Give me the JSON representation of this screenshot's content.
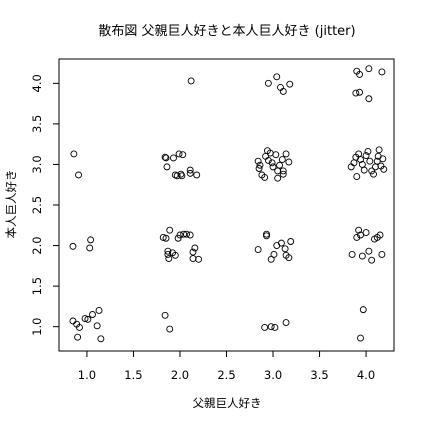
{
  "chart_data": {
    "type": "scatter",
    "title": "散布図 父親巨人好きと本人巨人好き (jitter)",
    "xlabel": "父親巨人好き",
    "ylabel": "本人巨人好き",
    "xlim": [
      0.7,
      4.3
    ],
    "ylim": [
      0.7,
      4.3
    ],
    "x_ticks": [
      1.0,
      1.5,
      2.0,
      2.5,
      3.0,
      3.5,
      4.0
    ],
    "x_tick_labels": [
      "1.0",
      "1.5",
      "2.0",
      "2.5",
      "3.0",
      "3.5",
      "4.0"
    ],
    "y_ticks": [
      1.0,
      1.5,
      2.0,
      2.5,
      3.0,
      3.5,
      4.0
    ],
    "y_tick_labels": [
      "1.0",
      "1.5",
      "2.0",
      "2.5",
      "3.0",
      "3.5",
      "4.0"
    ],
    "grid": false,
    "marker": "open-circle",
    "marker_color": "#000000",
    "points": [
      {
        "x": 0.85,
        "y": 1.07
      },
      {
        "x": 0.89,
        "y": 1.03
      },
      {
        "x": 0.92,
        "y": 0.99
      },
      {
        "x": 0.9,
        "y": 0.87
      },
      {
        "x": 0.98,
        "y": 1.1
      },
      {
        "x": 1.01,
        "y": 1.09
      },
      {
        "x": 1.06,
        "y": 1.15
      },
      {
        "x": 1.13,
        "y": 1.2
      },
      {
        "x": 1.11,
        "y": 1.01
      },
      {
        "x": 1.15,
        "y": 0.85
      },
      {
        "x": 0.86,
        "y": 3.13
      },
      {
        "x": 0.91,
        "y": 2.87
      },
      {
        "x": 0.85,
        "y": 1.99
      },
      {
        "x": 1.04,
        "y": 2.07
      },
      {
        "x": 1.03,
        "y": 1.97
      },
      {
        "x": 2.12,
        "y": 4.03
      },
      {
        "x": 1.84,
        "y": 3.09
      },
      {
        "x": 1.85,
        "y": 3.08
      },
      {
        "x": 1.86,
        "y": 2.97
      },
      {
        "x": 1.93,
        "y": 3.08
      },
      {
        "x": 1.99,
        "y": 3.13
      },
      {
        "x": 2.03,
        "y": 3.12
      },
      {
        "x": 1.95,
        "y": 2.87
      },
      {
        "x": 1.97,
        "y": 2.86
      },
      {
        "x": 2.01,
        "y": 2.88
      },
      {
        "x": 2.02,
        "y": 2.86
      },
      {
        "x": 2.11,
        "y": 2.93
      },
      {
        "x": 2.11,
        "y": 2.89
      },
      {
        "x": 2.18,
        "y": 2.87
      },
      {
        "x": 1.82,
        "y": 2.1
      },
      {
        "x": 1.85,
        "y": 2.09
      },
      {
        "x": 1.89,
        "y": 2.19
      },
      {
        "x": 1.87,
        "y": 1.93
      },
      {
        "x": 1.87,
        "y": 1.89
      },
      {
        "x": 1.88,
        "y": 1.84
      },
      {
        "x": 1.92,
        "y": 1.91
      },
      {
        "x": 1.95,
        "y": 1.88
      },
      {
        "x": 1.98,
        "y": 2.09
      },
      {
        "x": 2.0,
        "y": 2.13
      },
      {
        "x": 2.04,
        "y": 2.14
      },
      {
        "x": 2.07,
        "y": 2.14
      },
      {
        "x": 2.11,
        "y": 2.13
      },
      {
        "x": 2.14,
        "y": 1.92
      },
      {
        "x": 2.16,
        "y": 1.97
      },
      {
        "x": 2.14,
        "y": 1.84
      },
      {
        "x": 2.2,
        "y": 1.83
      },
      {
        "x": 1.84,
        "y": 1.14
      },
      {
        "x": 1.89,
        "y": 0.97
      },
      {
        "x": 2.95,
        "y": 4.0
      },
      {
        "x": 3.04,
        "y": 4.08
      },
      {
        "x": 3.08,
        "y": 3.95
      },
      {
        "x": 3.11,
        "y": 3.9
      },
      {
        "x": 3.18,
        "y": 3.99
      },
      {
        "x": 2.84,
        "y": 3.04
      },
      {
        "x": 2.86,
        "y": 2.99
      },
      {
        "x": 2.85,
        "y": 2.95
      },
      {
        "x": 2.88,
        "y": 2.87
      },
      {
        "x": 2.91,
        "y": 2.84
      },
      {
        "x": 2.92,
        "y": 3.1
      },
      {
        "x": 2.94,
        "y": 3.17
      },
      {
        "x": 2.95,
        "y": 3.05
      },
      {
        "x": 2.97,
        "y": 3.14
      },
      {
        "x": 2.99,
        "y": 3.02
      },
      {
        "x": 3.0,
        "y": 2.97
      },
      {
        "x": 3.03,
        "y": 3.12
      },
      {
        "x": 3.05,
        "y": 2.92
      },
      {
        "x": 3.07,
        "y": 2.99
      },
      {
        "x": 3.1,
        "y": 3.06
      },
      {
        "x": 3.11,
        "y": 2.92
      },
      {
        "x": 3.14,
        "y": 3.13
      },
      {
        "x": 3.17,
        "y": 3.03
      },
      {
        "x": 3.05,
        "y": 2.83
      },
      {
        "x": 3.11,
        "y": 2.88
      },
      {
        "x": 2.84,
        "y": 1.95
      },
      {
        "x": 2.93,
        "y": 2.14
      },
      {
        "x": 2.93,
        "y": 2.12
      },
      {
        "x": 2.98,
        "y": 1.83
      },
      {
        "x": 3.01,
        "y": 1.89
      },
      {
        "x": 3.04,
        "y": 2.0
      },
      {
        "x": 3.09,
        "y": 2.03
      },
      {
        "x": 3.13,
        "y": 1.96
      },
      {
        "x": 3.14,
        "y": 1.88
      },
      {
        "x": 3.17,
        "y": 1.85
      },
      {
        "x": 3.19,
        "y": 2.05
      },
      {
        "x": 2.91,
        "y": 0.99
      },
      {
        "x": 2.98,
        "y": 1.0
      },
      {
        "x": 3.02,
        "y": 0.99
      },
      {
        "x": 3.14,
        "y": 1.05
      },
      {
        "x": 3.9,
        "y": 4.15
      },
      {
        "x": 3.93,
        "y": 4.11
      },
      {
        "x": 4.03,
        "y": 4.18
      },
      {
        "x": 4.17,
        "y": 4.14
      },
      {
        "x": 3.89,
        "y": 3.88
      },
      {
        "x": 3.93,
        "y": 3.89
      },
      {
        "x": 4.03,
        "y": 3.81
      },
      {
        "x": 3.84,
        "y": 2.97
      },
      {
        "x": 3.87,
        "y": 3.02
      },
      {
        "x": 3.89,
        "y": 3.09
      },
      {
        "x": 3.9,
        "y": 2.85
      },
      {
        "x": 3.92,
        "y": 3.13
      },
      {
        "x": 3.94,
        "y": 3.06
      },
      {
        "x": 3.96,
        "y": 3.0
      },
      {
        "x": 3.98,
        "y": 2.93
      },
      {
        "x": 4.0,
        "y": 3.11
      },
      {
        "x": 4.02,
        "y": 3.16
      },
      {
        "x": 4.04,
        "y": 3.04
      },
      {
        "x": 4.06,
        "y": 2.92
      },
      {
        "x": 4.08,
        "y": 2.88
      },
      {
        "x": 4.1,
        "y": 2.97
      },
      {
        "x": 4.12,
        "y": 3.04
      },
      {
        "x": 4.14,
        "y": 3.18
      },
      {
        "x": 4.16,
        "y": 2.98
      },
      {
        "x": 4.18,
        "y": 3.07
      },
      {
        "x": 4.19,
        "y": 2.94
      },
      {
        "x": 4.13,
        "y": 3.1
      },
      {
        "x": 3.85,
        "y": 1.89
      },
      {
        "x": 3.9,
        "y": 2.1
      },
      {
        "x": 3.92,
        "y": 2.19
      },
      {
        "x": 3.94,
        "y": 2.13
      },
      {
        "x": 3.96,
        "y": 1.87
      },
      {
        "x": 4.0,
        "y": 2.16
      },
      {
        "x": 4.03,
        "y": 1.93
      },
      {
        "x": 4.06,
        "y": 1.82
      },
      {
        "x": 4.09,
        "y": 2.08
      },
      {
        "x": 4.12,
        "y": 2.1
      },
      {
        "x": 4.15,
        "y": 2.13
      },
      {
        "x": 4.17,
        "y": 1.89
      },
      {
        "x": 3.97,
        "y": 1.21
      },
      {
        "x": 3.94,
        "y": 0.86
      }
    ]
  }
}
